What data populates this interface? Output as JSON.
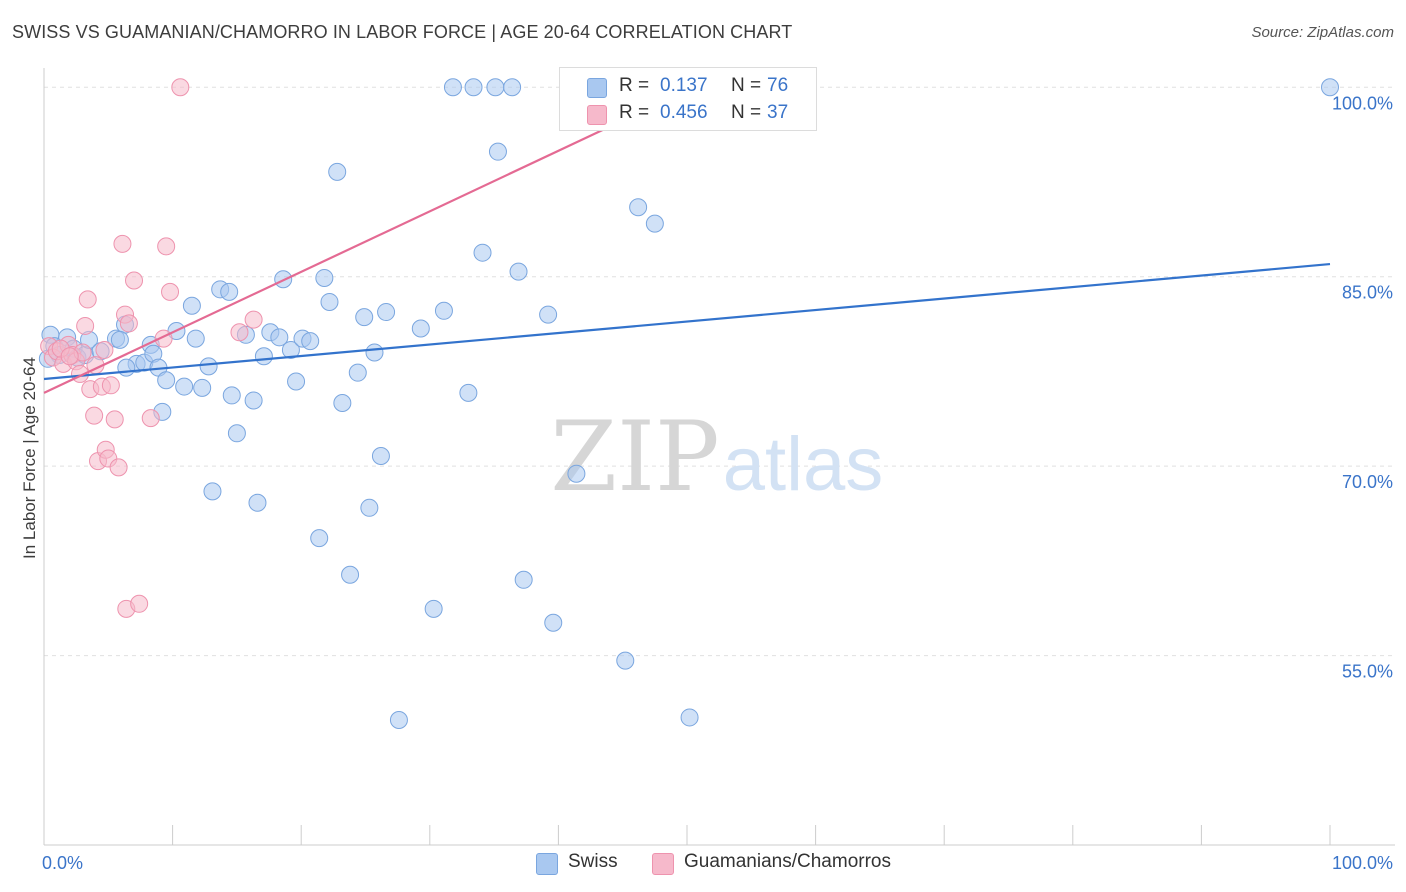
{
  "title": "SWISS VS GUAMANIAN/CHAMORRO IN LABOR FORCE | AGE 20-64 CORRELATION CHART",
  "source": "Source: ZipAtlas.com",
  "watermark": {
    "zip": "ZIP",
    "atlas": "atlas"
  },
  "legend": {
    "r_label": "R =",
    "n_label": "N =",
    "rows": [
      {
        "r": "0.137",
        "n": "76",
        "color": "#a9c8f0"
      },
      {
        "r": "0.456",
        "n": "37",
        "color": "#f6b9cb"
      }
    ]
  },
  "chart_data": {
    "type": "scatter",
    "title": "SWISS VS GUAMANIAN/CHAMORRO IN LABOR FORCE | AGE 20-64 CORRELATION CHART",
    "xlabel": "",
    "ylabel": "In Labor Force | Age 20-64",
    "xlim": [
      0,
      100
    ],
    "ylim": [
      40,
      102
    ],
    "x_tick_labels": [
      "0.0%",
      "100.0%"
    ],
    "y_ticks": [
      55,
      70,
      85,
      100
    ],
    "y_tick_labels": [
      "55.0%",
      "70.0%",
      "85.0%",
      "100.0%"
    ],
    "grid": true,
    "series": [
      {
        "name": "Swiss",
        "color": "#a9c8f0",
        "edge": "#7aa6df",
        "line_color": "#3373cc",
        "trend": [
          [
            0,
            76.9
          ],
          [
            100,
            86.0
          ]
        ],
        "points": [
          [
            0.5,
            80.4
          ],
          [
            0.8,
            79.5
          ],
          [
            1.2,
            78.8
          ],
          [
            1.8,
            80.2
          ],
          [
            2.3,
            79.3
          ],
          [
            2.6,
            78.6
          ],
          [
            3.2,
            78.8
          ],
          [
            3.5,
            80.0
          ],
          [
            4.4,
            79.1
          ],
          [
            5.6,
            80.1
          ],
          [
            6.3,
            81.2
          ],
          [
            5.9,
            80.0
          ],
          [
            7.2,
            78.1
          ],
          [
            6.4,
            77.8
          ],
          [
            7.8,
            78.2
          ],
          [
            8.3,
            79.6
          ],
          [
            8.5,
            78.9
          ],
          [
            8.9,
            77.8
          ],
          [
            9.5,
            76.8
          ],
          [
            9.2,
            74.3
          ],
          [
            10.3,
            80.7
          ],
          [
            10.9,
            76.3
          ],
          [
            11.5,
            82.7
          ],
          [
            11.8,
            80.1
          ],
          [
            12.3,
            76.2
          ],
          [
            12.8,
            77.9
          ],
          [
            13.1,
            68.0
          ],
          [
            13.7,
            84.0
          ],
          [
            14.4,
            83.8
          ],
          [
            14.6,
            75.6
          ],
          [
            15.0,
            72.6
          ],
          [
            15.7,
            80.4
          ],
          [
            16.3,
            75.2
          ],
          [
            16.6,
            67.1
          ],
          [
            17.1,
            78.7
          ],
          [
            17.6,
            80.6
          ],
          [
            18.3,
            80.2
          ],
          [
            18.6,
            84.8
          ],
          [
            19.2,
            79.2
          ],
          [
            19.6,
            76.7
          ],
          [
            20.1,
            80.1
          ],
          [
            20.7,
            79.9
          ],
          [
            21.4,
            64.3
          ],
          [
            21.8,
            84.9
          ],
          [
            22.2,
            83.0
          ],
          [
            22.8,
            93.3
          ],
          [
            23.2,
            75.0
          ],
          [
            23.8,
            61.4
          ],
          [
            24.4,
            77.4
          ],
          [
            24.9,
            81.8
          ],
          [
            25.3,
            66.7
          ],
          [
            25.7,
            79.0
          ],
          [
            26.2,
            70.8
          ],
          [
            26.6,
            82.2
          ],
          [
            27.6,
            49.9
          ],
          [
            29.3,
            80.9
          ],
          [
            30.3,
            58.7
          ],
          [
            31.1,
            82.3
          ],
          [
            31.8,
            100.0
          ],
          [
            33.0,
            75.8
          ],
          [
            33.4,
            100.0
          ],
          [
            34.1,
            86.9
          ],
          [
            35.1,
            100.0
          ],
          [
            35.3,
            94.9
          ],
          [
            36.4,
            100.0
          ],
          [
            36.9,
            85.4
          ],
          [
            37.3,
            61.0
          ],
          [
            39.2,
            82.0
          ],
          [
            39.6,
            57.6
          ],
          [
            41.4,
            69.4
          ],
          [
            45.2,
            54.6
          ],
          [
            46.2,
            90.5
          ],
          [
            47.5,
            89.2
          ],
          [
            50.2,
            50.1
          ],
          [
            100.0,
            100.0
          ],
          [
            0.3,
            78.5
          ]
        ]
      },
      {
        "name": "Guamanians/Chamorros",
        "color": "#f6b9cb",
        "edge": "#ee93ae",
        "line_color": "#e46a93",
        "trend": [
          [
            0,
            75.8
          ],
          [
            50.5,
            100.0
          ]
        ],
        "points": [
          [
            0.4,
            79.5
          ],
          [
            0.7,
            78.6
          ],
          [
            1.0,
            79.1
          ],
          [
            1.5,
            78.1
          ],
          [
            1.9,
            79.6
          ],
          [
            2.2,
            78.8
          ],
          [
            2.5,
            78.3
          ],
          [
            2.8,
            77.3
          ],
          [
            3.0,
            79.0
          ],
          [
            3.2,
            81.1
          ],
          [
            3.4,
            83.2
          ],
          [
            3.6,
            76.1
          ],
          [
            3.9,
            74.0
          ],
          [
            4.0,
            78.0
          ],
          [
            4.2,
            70.4
          ],
          [
            4.5,
            76.3
          ],
          [
            4.8,
            71.3
          ],
          [
            5.0,
            70.6
          ],
          [
            5.2,
            76.4
          ],
          [
            5.5,
            73.7
          ],
          [
            5.8,
            69.9
          ],
          [
            6.1,
            87.6
          ],
          [
            6.3,
            82.0
          ],
          [
            6.4,
            58.7
          ],
          [
            6.6,
            81.3
          ],
          [
            7.0,
            84.7
          ],
          [
            7.4,
            59.1
          ],
          [
            8.3,
            73.8
          ],
          [
            9.3,
            80.1
          ],
          [
            9.5,
            87.4
          ],
          [
            9.8,
            83.8
          ],
          [
            10.6,
            100.0
          ],
          [
            15.2,
            80.6
          ],
          [
            16.3,
            81.6
          ],
          [
            1.3,
            79.3
          ],
          [
            2.0,
            78.7
          ],
          [
            4.7,
            79.2
          ]
        ]
      }
    ]
  }
}
